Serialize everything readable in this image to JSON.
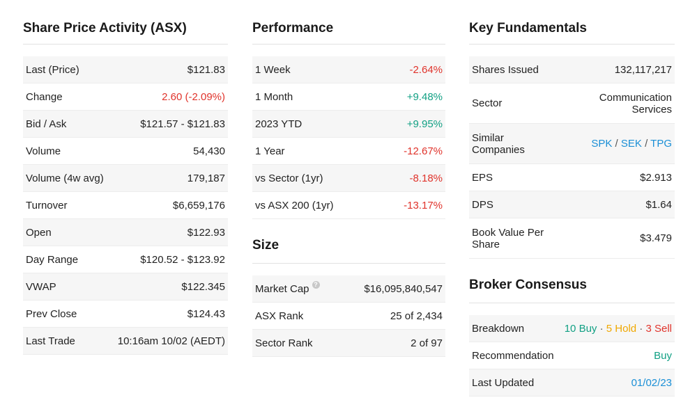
{
  "share_price": {
    "title": "Share Price Activity (ASX)",
    "rows": [
      {
        "label": "Last (Price)",
        "value": "$121.83"
      },
      {
        "label": "Change",
        "value": "2.60 (-2.09%)"
      },
      {
        "label": "Bid / Ask",
        "value": "$121.57 - $121.83"
      },
      {
        "label": "Volume",
        "value": "54,430"
      },
      {
        "label": "Volume (4w avg)",
        "value": "179,187"
      },
      {
        "label": "Turnover",
        "value": "$6,659,176"
      },
      {
        "label": "Open",
        "value": "$122.93"
      },
      {
        "label": "Day Range",
        "value": "$120.52 - $123.92"
      },
      {
        "label": "VWAP",
        "value": "$122.345"
      },
      {
        "label": "Prev Close",
        "value": "$124.43"
      },
      {
        "label": "Last Trade",
        "value": "10:16am 10/02 (AEDT)"
      }
    ]
  },
  "performance": {
    "title": "Performance",
    "rows": [
      {
        "label": "1 Week",
        "value": "-2.64%"
      },
      {
        "label": "1 Month",
        "value": "+9.48%"
      },
      {
        "label": "2023 YTD",
        "value": "+9.95%"
      },
      {
        "label": "1 Year",
        "value": "-12.67%"
      },
      {
        "label": "vs Sector (1yr)",
        "value": "-8.18%"
      },
      {
        "label": "vs ASX 200 (1yr)",
        "value": "-13.17%"
      }
    ]
  },
  "size": {
    "title": "Size",
    "help_icon": "?",
    "rows": [
      {
        "label": "Market Cap",
        "value": "$16,095,840,547"
      },
      {
        "label": "ASX Rank",
        "value": "25 of 2,434"
      },
      {
        "label": "Sector Rank",
        "value": "2 of 97"
      }
    ]
  },
  "fundamentals": {
    "title": "Key Fundamentals",
    "rows": [
      {
        "label": "Shares Issued",
        "value": "132,117,217"
      },
      {
        "label": "Sector",
        "value": "Communication Services"
      },
      {
        "label": "Similar Companies",
        "value": ""
      },
      {
        "label": "EPS",
        "value": "$2.913"
      },
      {
        "label": "DPS",
        "value": "$1.64"
      },
      {
        "label": "Book Value Per Share",
        "value": "$3.479"
      }
    ],
    "similar": [
      "SPK",
      "SEK",
      "TPG"
    ],
    "slash": "/"
  },
  "broker": {
    "title": "Broker Consensus",
    "breakdown_label": "Breakdown",
    "buy": "10 Buy",
    "hold": "5 Hold",
    "sell": "3 Sell",
    "dot": "·",
    "recommendation_label": "Recommendation",
    "recommendation": "Buy",
    "updated_label": "Last Updated",
    "updated": "01/02/23"
  },
  "colors": {
    "red": "#e0332b",
    "green": "#12a084",
    "blue": "#1a8fd6",
    "amber": "#f0a800"
  }
}
